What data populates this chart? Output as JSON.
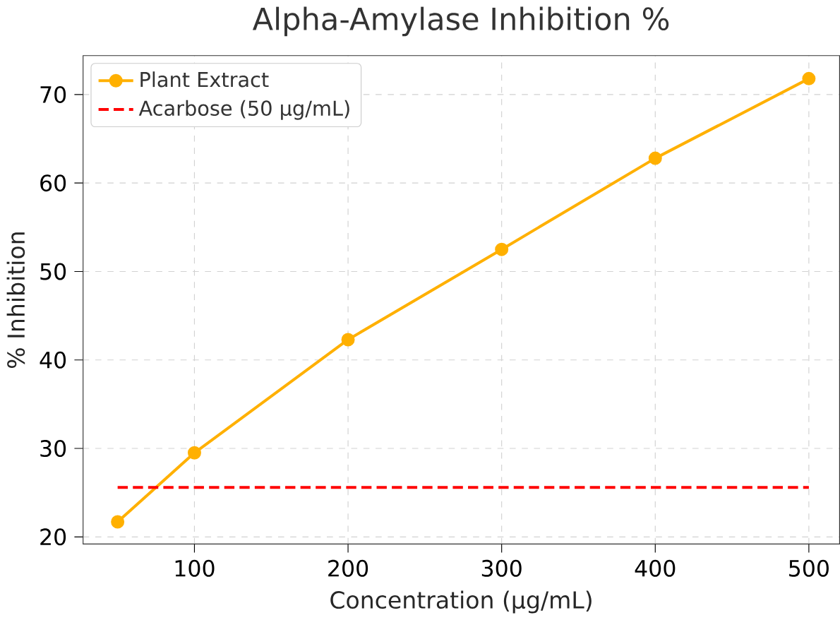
{
  "chart_data": {
    "type": "line",
    "title": "Alpha-Amylase Inhibition %",
    "xlabel": "Concentration (µg/mL)",
    "ylabel": "% Inhibition",
    "x": [
      50,
      100,
      200,
      300,
      400,
      500
    ],
    "series": [
      {
        "name": "Plant Extract",
        "color": "#ffb000",
        "values": [
          21.7,
          29.5,
          42.3,
          52.5,
          62.8,
          71.8
        ],
        "marker": "circle",
        "line_style": "solid"
      },
      {
        "name": "Acarbose (50 µg/mL)",
        "color": "#ff0000",
        "x": [
          50,
          500
        ],
        "values": [
          25.6,
          25.6
        ],
        "marker": "none",
        "line_style": "dashed"
      }
    ],
    "xlim": [
      27.5,
      520
    ],
    "ylim": [
      19.2,
      74.4
    ],
    "xticks": [
      100,
      200,
      300,
      400,
      500
    ],
    "yticks": [
      20,
      30,
      40,
      50,
      60,
      70
    ],
    "grid": true,
    "legend": "top left"
  }
}
